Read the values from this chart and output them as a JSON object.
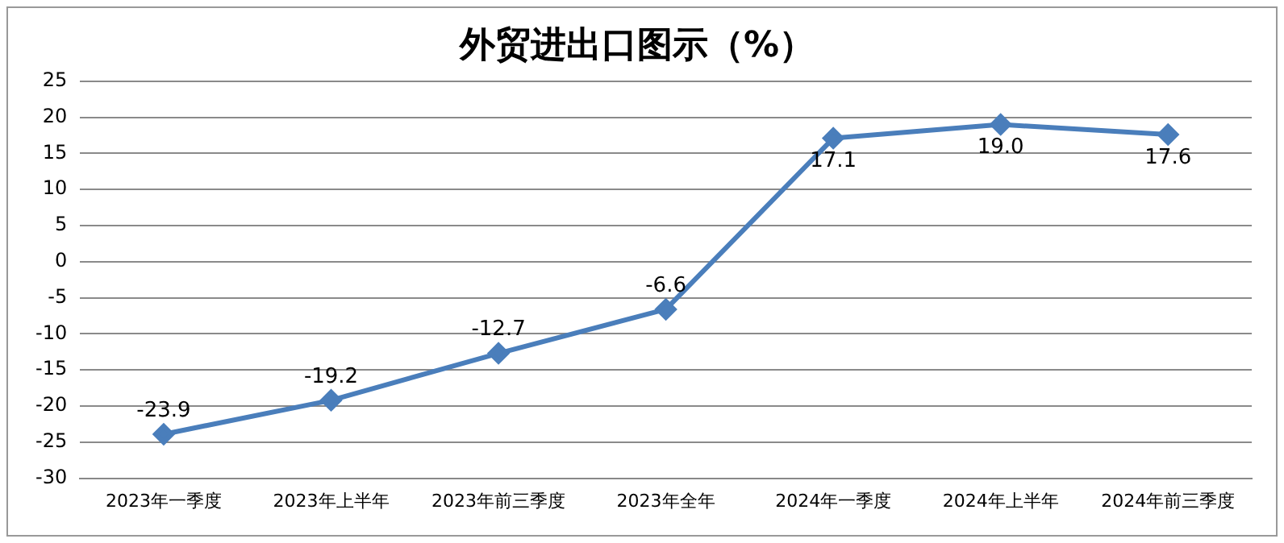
{
  "chart_data": {
    "type": "line",
    "title": "外贸进出口图示（%）",
    "categories": [
      "2023年一季度",
      "2023年上半年",
      "2023年前三季度",
      "2023年全年",
      "2024年一季度",
      "2024年上半年",
      "2024年前三季度"
    ],
    "series": [
      {
        "color": "#4a7ebb",
        "values": [
          -23.9,
          -19.2,
          -12.7,
          -6.6,
          17.1,
          19.0,
          17.6
        ],
        "value_labels": [
          "-23.9",
          "-19.2",
          "-12.7",
          "-6.6",
          "17.1",
          "19.0",
          "17.6"
        ]
      }
    ],
    "ylim": [
      -30,
      25
    ],
    "yticks": [
      -30,
      -25,
      -20,
      -15,
      -10,
      -5,
      0,
      5,
      10,
      15,
      20,
      25
    ],
    "grid": "y",
    "legend": false,
    "marker": "diamond",
    "line_style": "solid"
  }
}
